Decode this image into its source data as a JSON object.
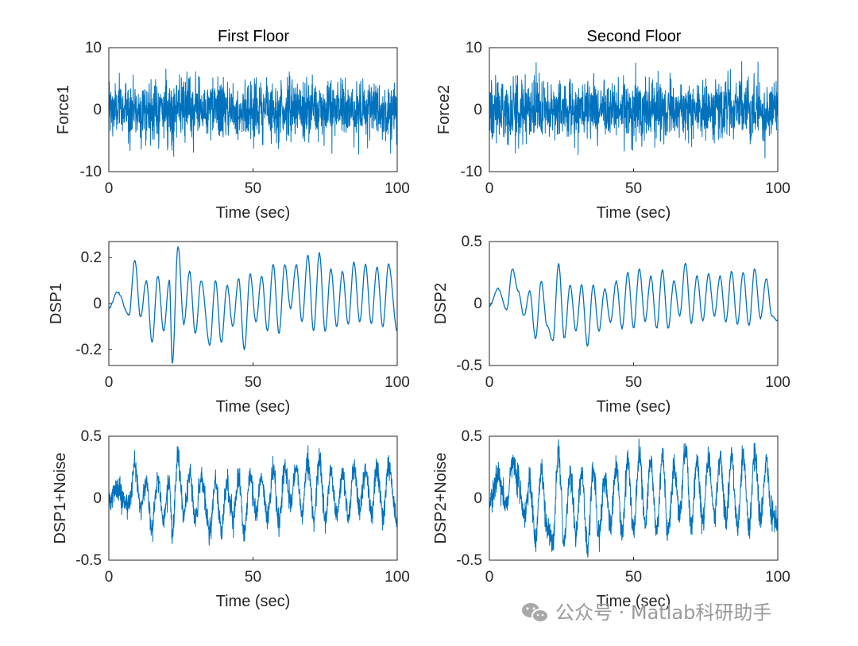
{
  "chart_data": [
    {
      "type": "line",
      "panel": "force1",
      "title": "First Floor",
      "xlabel": "Time (sec)",
      "ylabel": "Force1",
      "xlim": [
        0,
        100
      ],
      "ylim": [
        -10,
        10
      ],
      "xticks": [
        "0",
        "50",
        "100"
      ],
      "yticks": [
        "-10",
        "0",
        "10"
      ],
      "style": "noise",
      "amplitude": 2.4,
      "color": "#0072BD"
    },
    {
      "type": "line",
      "panel": "force2",
      "title": "Second Floor",
      "xlabel": "Time (sec)",
      "ylabel": "Force2",
      "xlim": [
        0,
        100
      ],
      "ylim": [
        -10,
        10
      ],
      "xticks": [
        "0",
        "50",
        "100"
      ],
      "yticks": [
        "-10",
        "0",
        "10"
      ],
      "style": "noise",
      "amplitude": 2.4,
      "color": "#0072BD"
    },
    {
      "type": "line",
      "panel": "dsp1",
      "title": "",
      "xlabel": "Time (sec)",
      "ylabel": "DSP1",
      "xlim": [
        0,
        100
      ],
      "ylim": [
        -0.27,
        0.27
      ],
      "xticks": [
        "0",
        "50",
        "100"
      ],
      "yticks": [
        "-0.2",
        "0",
        "0.2"
      ],
      "ytick_values": [
        -0.2,
        0,
        0.2
      ],
      "style": "smooth",
      "x": [
        0,
        3,
        7,
        9,
        11,
        13,
        15,
        17,
        19,
        21,
        22,
        24,
        26,
        28,
        30,
        32,
        35,
        37,
        39,
        41,
        43,
        45,
        47,
        49,
        51,
        53,
        55,
        57,
        59,
        61,
        63,
        65,
        67,
        69,
        71,
        73,
        75,
        77,
        79,
        81,
        83,
        85,
        87,
        89,
        91,
        93,
        95,
        97,
        100
      ],
      "y": [
        -0.02,
        0.05,
        -0.05,
        0.19,
        -0.06,
        0.1,
        -0.17,
        0.12,
        -0.12,
        0.1,
        -0.26,
        0.25,
        -0.09,
        0.14,
        -0.13,
        0.1,
        -0.18,
        0.1,
        -0.17,
        0.08,
        -0.1,
        0.11,
        -0.2,
        0.13,
        -0.08,
        0.12,
        -0.12,
        0.17,
        -0.13,
        0.17,
        -0.02,
        0.17,
        -0.08,
        0.21,
        -0.12,
        0.22,
        -0.12,
        0.15,
        -0.1,
        0.14,
        -0.09,
        0.18,
        -0.08,
        0.17,
        -0.09,
        0.16,
        -0.1,
        0.17,
        -0.12
      ]
    },
    {
      "type": "line",
      "panel": "dsp2",
      "title": "",
      "xlabel": "Time (sec)",
      "ylabel": "DSP2",
      "xlim": [
        0,
        100
      ],
      "ylim": [
        -0.5,
        0.5
      ],
      "xticks": [
        "0",
        "50",
        "100"
      ],
      "yticks": [
        "-0.5",
        "0",
        "0.5"
      ],
      "style": "smooth",
      "x": [
        0,
        3,
        6,
        8,
        10,
        12,
        14,
        16,
        18,
        20,
        22,
        24,
        26,
        28,
        30,
        32,
        34,
        36,
        38,
        40,
        42,
        44,
        46,
        48,
        50,
        52,
        54,
        56,
        58,
        60,
        62,
        64,
        66,
        68,
        70,
        72,
        74,
        76,
        78,
        80,
        82,
        84,
        86,
        88,
        90,
        92,
        94,
        96,
        98,
        100
      ],
      "y": [
        -0.02,
        0.12,
        -0.05,
        0.28,
        0.1,
        -0.1,
        0.1,
        -0.28,
        0.18,
        -0.18,
        -0.3,
        0.32,
        -0.28,
        0.15,
        -0.22,
        0.15,
        -0.34,
        0.15,
        -0.22,
        0.12,
        -0.15,
        0.18,
        -0.2,
        0.25,
        -0.2,
        0.28,
        -0.14,
        0.22,
        -0.2,
        0.27,
        -0.2,
        0.18,
        -0.1,
        0.33,
        -0.16,
        0.22,
        -0.14,
        0.24,
        -0.1,
        0.22,
        -0.15,
        0.26,
        -0.17,
        0.25,
        -0.18,
        0.28,
        -0.12,
        0.2,
        -0.1,
        -0.14
      ]
    },
    {
      "type": "line",
      "panel": "dsp1n",
      "title": "",
      "xlabel": "Time (sec)",
      "ylabel": "DSP1+Noise",
      "xlim": [
        0,
        100
      ],
      "ylim": [
        -0.5,
        0.5
      ],
      "xticks": [
        "0",
        "50",
        "100"
      ],
      "yticks": [
        "-0.5",
        "0",
        "0.5"
      ],
      "style": "noisy-smooth",
      "noise": 0.05,
      "x": [
        0,
        3,
        7,
        9,
        11,
        13,
        15,
        17,
        19,
        21,
        22,
        24,
        26,
        28,
        30,
        32,
        35,
        37,
        39,
        41,
        43,
        45,
        47,
        49,
        51,
        53,
        55,
        57,
        59,
        61,
        63,
        65,
        67,
        69,
        71,
        73,
        75,
        77,
        79,
        81,
        83,
        85,
        87,
        89,
        91,
        93,
        95,
        97,
        100
      ],
      "y": [
        -0.03,
        0.08,
        -0.07,
        0.28,
        -0.09,
        0.15,
        -0.25,
        0.17,
        -0.17,
        0.15,
        -0.3,
        0.33,
        -0.13,
        0.2,
        -0.19,
        0.15,
        -0.26,
        0.15,
        -0.25,
        0.12,
        -0.15,
        0.16,
        -0.28,
        0.19,
        -0.12,
        0.17,
        -0.17,
        0.25,
        -0.19,
        0.25,
        -0.03,
        0.25,
        -0.12,
        0.3,
        -0.17,
        0.32,
        -0.17,
        0.22,
        -0.14,
        0.2,
        -0.13,
        0.26,
        -0.12,
        0.25,
        -0.13,
        0.23,
        -0.14,
        0.25,
        -0.2
      ]
    },
    {
      "type": "line",
      "panel": "dsp2n",
      "title": "",
      "xlabel": "Time (sec)",
      "ylabel": "DSP2+Noise",
      "xlim": [
        0,
        100
      ],
      "ylim": [
        -0.5,
        0.5
      ],
      "xticks": [
        "0",
        "50",
        "100"
      ],
      "yticks": [
        "-0.5",
        "0",
        "0.5"
      ],
      "style": "noisy-smooth",
      "noise": 0.055,
      "x": [
        0,
        3,
        6,
        8,
        10,
        12,
        14,
        16,
        18,
        20,
        22,
        24,
        26,
        28,
        30,
        32,
        34,
        36,
        38,
        40,
        42,
        44,
        46,
        48,
        50,
        52,
        54,
        56,
        58,
        60,
        62,
        64,
        66,
        68,
        70,
        72,
        74,
        76,
        78,
        80,
        82,
        84,
        86,
        88,
        90,
        92,
        94,
        96,
        98,
        100
      ],
      "y": [
        -0.03,
        0.18,
        -0.07,
        0.3,
        0.14,
        -0.14,
        0.14,
        -0.35,
        0.25,
        -0.25,
        -0.35,
        0.38,
        -0.35,
        0.22,
        -0.3,
        0.22,
        -0.4,
        0.22,
        -0.3,
        0.18,
        -0.22,
        0.26,
        -0.28,
        0.33,
        -0.28,
        0.36,
        -0.2,
        0.3,
        -0.28,
        0.36,
        -0.28,
        0.26,
        -0.14,
        0.4,
        -0.22,
        0.3,
        -0.2,
        0.32,
        -0.14,
        0.3,
        -0.2,
        0.34,
        -0.24,
        0.33,
        -0.25,
        0.36,
        -0.17,
        0.28,
        -0.14,
        -0.2
      ]
    }
  ],
  "watermark": {
    "text": "公众号 · Matlab科研助手",
    "icon": "wechat-icon"
  }
}
